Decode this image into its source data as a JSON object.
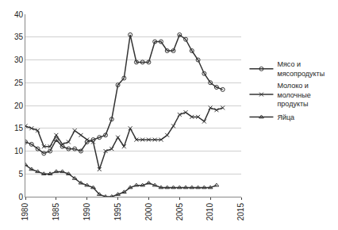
{
  "chart_data": {
    "type": "line",
    "x": [
      1980,
      1981,
      1982,
      1983,
      1984,
      1985,
      1986,
      1987,
      1988,
      1989,
      1990,
      1991,
      1992,
      1993,
      1994,
      1995,
      1996,
      1997,
      1998,
      1999,
      2000,
      2001,
      2002,
      2003,
      2004,
      2005,
      2006,
      2007,
      2008,
      2009,
      2010,
      2011,
      2012
    ],
    "series": [
      {
        "name": "Мясо и мясопродукты",
        "color": "#333333",
        "marker": "circle-open",
        "line_style": "solid",
        "values": [
          12,
          11.5,
          10.5,
          9.5,
          10,
          12.5,
          11,
          10.5,
          10.5,
          10,
          12,
          12.5,
          13,
          13.5,
          17,
          24.5,
          26,
          35.5,
          29.5,
          29.5,
          29.5,
          34,
          34,
          32,
          32,
          35.5,
          34.5,
          32,
          30,
          27,
          25,
          24,
          23.5
        ]
      },
      {
        "name": "Молоко и молочные продукты",
        "color": "#333333",
        "marker": "x-thin-open",
        "line_style": "solid",
        "values": [
          15.5,
          15,
          14.5,
          11,
          11,
          13.5,
          11.5,
          12,
          14.5,
          13.5,
          12.5,
          12,
          6,
          10,
          10.5,
          13,
          11,
          15,
          12.5,
          12.5,
          12.5,
          12.5,
          12.5,
          13.5,
          15.5,
          18,
          18.5,
          17.5,
          17.5,
          16.5,
          19.5,
          19,
          19.5
        ]
      },
      {
        "name": "Яйца",
        "color": "#333333",
        "marker": "triangle-up-open",
        "line_style": "solid",
        "values": [
          7,
          6,
          5.5,
          5,
          5,
          5.5,
          5.5,
          5,
          4,
          3,
          2.5,
          2,
          0.5,
          0,
          0,
          0.5,
          1,
          2,
          2.5,
          2.5,
          3,
          2.5,
          2,
          2,
          2,
          2,
          2,
          2,
          2,
          2,
          2,
          2.5,
          null
        ]
      }
    ],
    "xlim": [
      1980,
      2015
    ],
    "xticks": [
      1980,
      1985,
      1990,
      1995,
      2000,
      2005,
      2010,
      2015
    ],
    "ylim": [
      0,
      40
    ],
    "yticks": [
      0,
      5,
      10,
      15,
      20,
      25,
      30,
      35,
      40
    ],
    "grid": true,
    "legend": "right"
  }
}
